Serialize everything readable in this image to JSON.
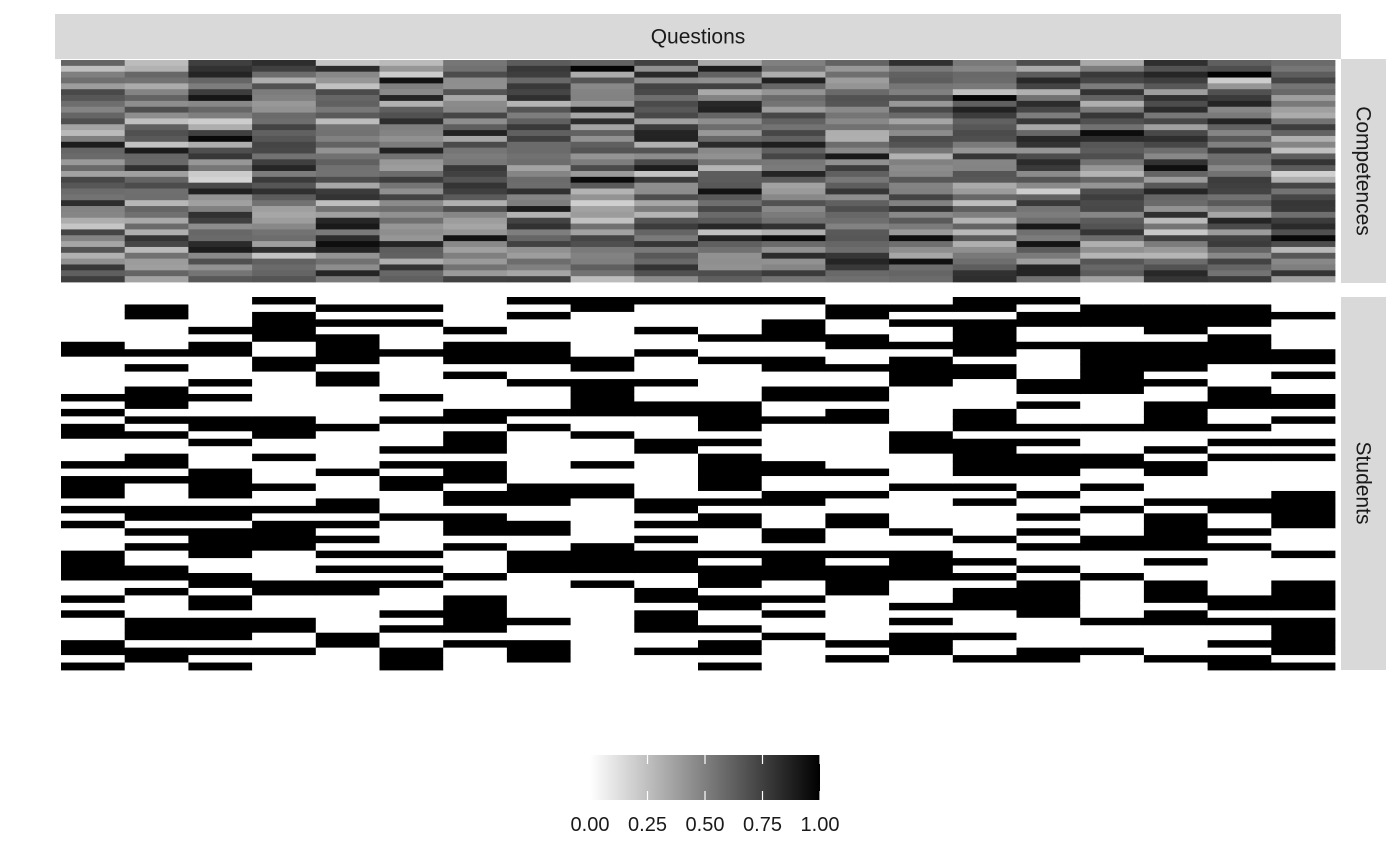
{
  "chart_data": {
    "type": "heatmap",
    "colors": {
      "low": "#ffffff",
      "high": "#000000",
      "strip_bg": "#d9d9d9",
      "tick": "#ffffff"
    },
    "column_facet": {
      "label": "Questions"
    },
    "facets": [
      {
        "label": "Competences",
        "n_rows": 38,
        "n_cols": 20,
        "value_kind": "continuous",
        "value_range": [
          0.15,
          1.0
        ]
      },
      {
        "label": "Students",
        "n_rows": 50,
        "n_cols": 20,
        "value_kind": "binary",
        "values_observed": [
          0,
          1
        ]
      }
    ],
    "legend": {
      "position": "bottom",
      "orientation": "horizontal",
      "limits": [
        0,
        1
      ],
      "breaks": [
        0,
        0.25,
        0.5,
        0.75,
        1
      ],
      "labels": [
        "0.00",
        "0.25",
        "0.50",
        "0.75",
        "1.00"
      ]
    },
    "xlabel": "",
    "ylabel": ""
  }
}
